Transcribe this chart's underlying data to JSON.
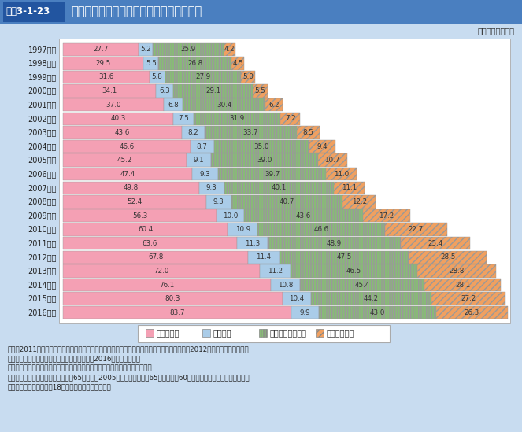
{
  "title_box": "図表3-1-23",
  "title_text": "世帯類型別生活保護受給世帯数の年次推移",
  "unit_text": "（単位：万世帯）",
  "years": [
    "1997年度",
    "1998年度",
    "1999年度",
    "2000年度",
    "2001年度",
    "2002年度",
    "2003年度",
    "2004年度",
    "2005年度",
    "2006年度",
    "2007年度",
    "2008年度",
    "2009年度",
    "2010年度",
    "2011年度",
    "2012年度",
    "2013年度",
    "2014年度",
    "2015年度",
    "2016年度"
  ],
  "koureisha": [
    27.7,
    29.5,
    31.6,
    34.1,
    37.0,
    40.3,
    43.6,
    46.6,
    45.2,
    47.4,
    49.8,
    52.4,
    56.3,
    60.4,
    63.6,
    67.8,
    72.0,
    76.1,
    80.3,
    83.7
  ],
  "boshi": [
    5.2,
    5.5,
    5.8,
    6.3,
    6.8,
    7.5,
    8.2,
    8.7,
    9.1,
    9.3,
    9.3,
    9.3,
    10.0,
    10.9,
    11.3,
    11.4,
    11.2,
    10.8,
    10.4,
    9.9
  ],
  "shougai": [
    25.9,
    26.8,
    27.9,
    29.1,
    30.4,
    31.9,
    33.7,
    35.0,
    39.0,
    39.7,
    40.1,
    40.7,
    43.6,
    46.6,
    48.9,
    47.5,
    46.5,
    45.4,
    44.2,
    43.0
  ],
  "sonota": [
    4.2,
    4.5,
    5.0,
    5.5,
    6.2,
    7.2,
    8.5,
    9.4,
    10.7,
    11.0,
    11.1,
    12.2,
    17.2,
    22.7,
    25.4,
    28.5,
    28.8,
    28.1,
    27.2,
    26.3
  ],
  "color_koureisha": "#F4A0B4",
  "color_boshi": "#AACCE8",
  "color_shougai": "#88BB77",
  "color_sonota": "#F0A060",
  "legend_labels": [
    "高齢者世帯",
    "母子世帯",
    "傷病・障害者世帯",
    "その他の世帯"
  ],
  "note1": "資料：2011年度以前は厚生労働省政策統括官付参事官付行政報告統計室「福祉行政報告例」、2012年度以降は厚生労働省",
  "note2": "　　　社会・援護局保護課「被保護者調査」（2016年度は速報値）",
  "note3": "（注）　世帯数は各年度の１か月平均であり、保護停止中の世帯は含まない。",
  "note4": "　　　高齢者世帯の定義：男女とも65歳以上（2005年３月以前は、男65歳以上、女60歳以上）の者のみで構成されてい",
  "note5": "　　　る世帯か、これに18歳未満の者が加わった世帯",
  "bg_color": "#C8DCF0",
  "chart_bg": "#FFFFFF",
  "header_bg": "#4A7FC0",
  "title_box_bg": "#2255A0"
}
